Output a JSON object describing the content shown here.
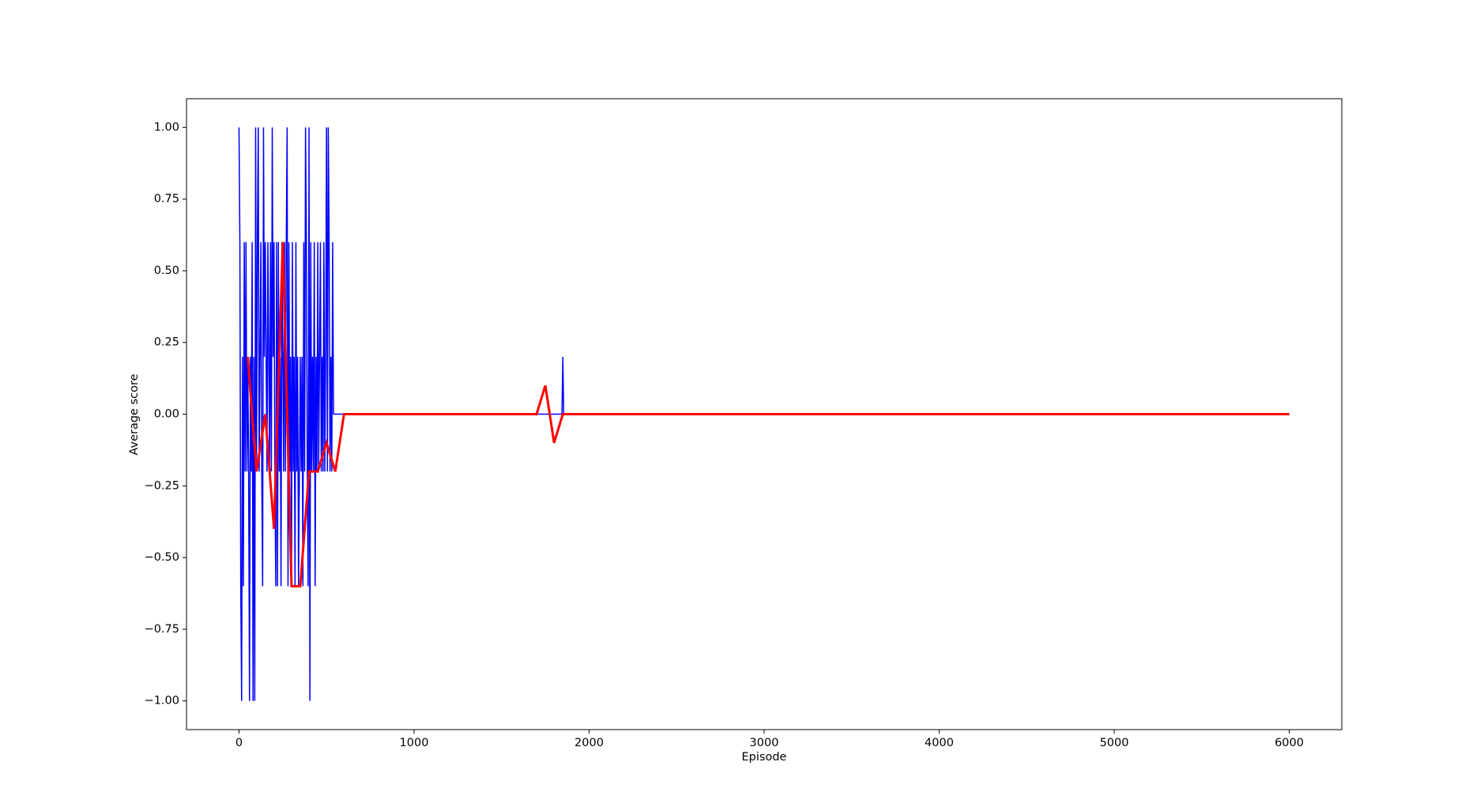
{
  "chart_data": {
    "type": "line",
    "x_label": "Episode",
    "y_label": "Average score",
    "xlim": [
      -300,
      6300
    ],
    "ylim": [
      -1.1,
      1.1
    ],
    "xticks": [
      0,
      1000,
      2000,
      3000,
      4000,
      5000,
      6000
    ],
    "yticks": [
      {
        "value": -1,
        "label": "−1.00"
      },
      {
        "value": -0.75,
        "label": "−0.75"
      },
      {
        "value": -0.5,
        "label": "−0.50"
      },
      {
        "value": -0.25,
        "label": "−0.25"
      },
      {
        "value": 0,
        "label": "0.00"
      },
      {
        "value": 0.25,
        "label": "0.25"
      },
      {
        "value": 0.5,
        "label": "0.50"
      },
      {
        "value": 0.75,
        "label": "0.75"
      },
      {
        "value": 1,
        "label": "1.00"
      }
    ],
    "series": [
      {
        "color": "#0000ff",
        "width": 1.5,
        "x": [
          0,
          5,
          10,
          15,
          20,
          25,
          30,
          35,
          40,
          45,
          50,
          55,
          60,
          65,
          70,
          75,
          80,
          85,
          90,
          95,
          100,
          105,
          110,
          115,
          120,
          125,
          130,
          135,
          140,
          145,
          150,
          155,
          160,
          165,
          170,
          175,
          180,
          185,
          190,
          195,
          200,
          205,
          210,
          215,
          220,
          225,
          230,
          235,
          240,
          245,
          250,
          255,
          260,
          265,
          270,
          275,
          280,
          285,
          290,
          295,
          300,
          305,
          310,
          315,
          320,
          325,
          330,
          335,
          340,
          345,
          350,
          355,
          360,
          365,
          370,
          375,
          380,
          385,
          390,
          395,
          400,
          405,
          410,
          415,
          420,
          425,
          430,
          435,
          440,
          445,
          450,
          455,
          460,
          465,
          470,
          475,
          480,
          485,
          490,
          495,
          500,
          505,
          510,
          515,
          520,
          525,
          530,
          535,
          540,
          1845,
          1850,
          1855
        ],
        "values": [
          1,
          0.6,
          -0.6,
          -1,
          0.2,
          -0.6,
          0.6,
          -0.2,
          0.6,
          -0.2,
          0.2,
          -0.2,
          -1,
          0.2,
          -0.2,
          0.6,
          -1,
          0.2,
          -1,
          1,
          -0.2,
          0.6,
          1,
          -0.2,
          0.2,
          0.6,
          -0.2,
          -0.6,
          1,
          0.2,
          0.6,
          0.2,
          -0.2,
          0.6,
          0.2,
          -0.2,
          0.6,
          -0.2,
          1,
          0.2,
          0.6,
          -0.2,
          -0.6,
          0.6,
          -0.6,
          0.6,
          -0.2,
          0.2,
          -0.6,
          0.6,
          0.2,
          -0.2,
          0.6,
          -0.2,
          0.6,
          1,
          -0.6,
          0.6,
          -0.2,
          0.2,
          -0.6,
          0.6,
          -0.2,
          0.2,
          -0.6,
          0.6,
          -0.2,
          0.2,
          -0.6,
          -0.2,
          0.2,
          -0.2,
          0.2,
          -0.6,
          0.6,
          -0.2,
          1,
          0.6,
          -0.2,
          -0.6,
          1,
          -1,
          0.6,
          -0.2,
          0.2,
          -0.2,
          0.6,
          -0.6,
          0.2,
          -0.2,
          0.6,
          -0.2,
          0.2,
          0.6,
          -0.2,
          0.2,
          -0.2,
          0.6,
          -0.2,
          0.2,
          1,
          -0.2,
          1,
          0.6,
          -0.2,
          0.2,
          -0.2,
          0.6,
          0,
          0,
          0.2,
          0
        ]
      },
      {
        "color": "#ff0000",
        "width": 3,
        "x": [
          50,
          100,
          150,
          200,
          250,
          300,
          350,
          400,
          450,
          500,
          550,
          600,
          1700,
          1750,
          1800,
          1850,
          6000
        ],
        "values": [
          0.2,
          -0.2,
          0,
          -0.4,
          0.6,
          -0.6,
          -0.6,
          -0.2,
          -0.2,
          -0.1,
          -0.2,
          0,
          0,
          0.1,
          -0.1,
          0,
          0
        ]
      }
    ]
  }
}
